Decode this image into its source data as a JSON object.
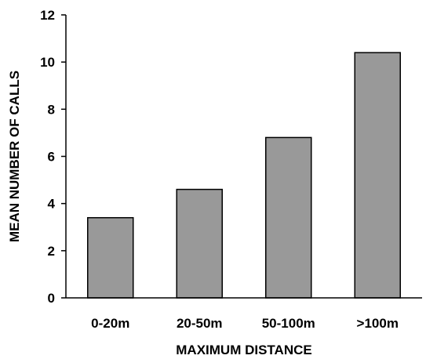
{
  "chart_data": {
    "type": "bar",
    "categories": [
      "0-20m",
      "20-50m",
      "50-100m",
      ">100m"
    ],
    "values": [
      3.4,
      4.6,
      6.8,
      10.4
    ],
    "title": "",
    "xlabel": "MAXIMUM DISTANCE",
    "ylabel": "MEAN NUMBER OF CALLS",
    "ylim": [
      0,
      12
    ],
    "yticks": [
      0,
      2,
      4,
      6,
      8,
      10,
      12
    ],
    "grid": false,
    "legend": "none",
    "bar_color": "#999999",
    "bar_edge_color": "#000000"
  }
}
